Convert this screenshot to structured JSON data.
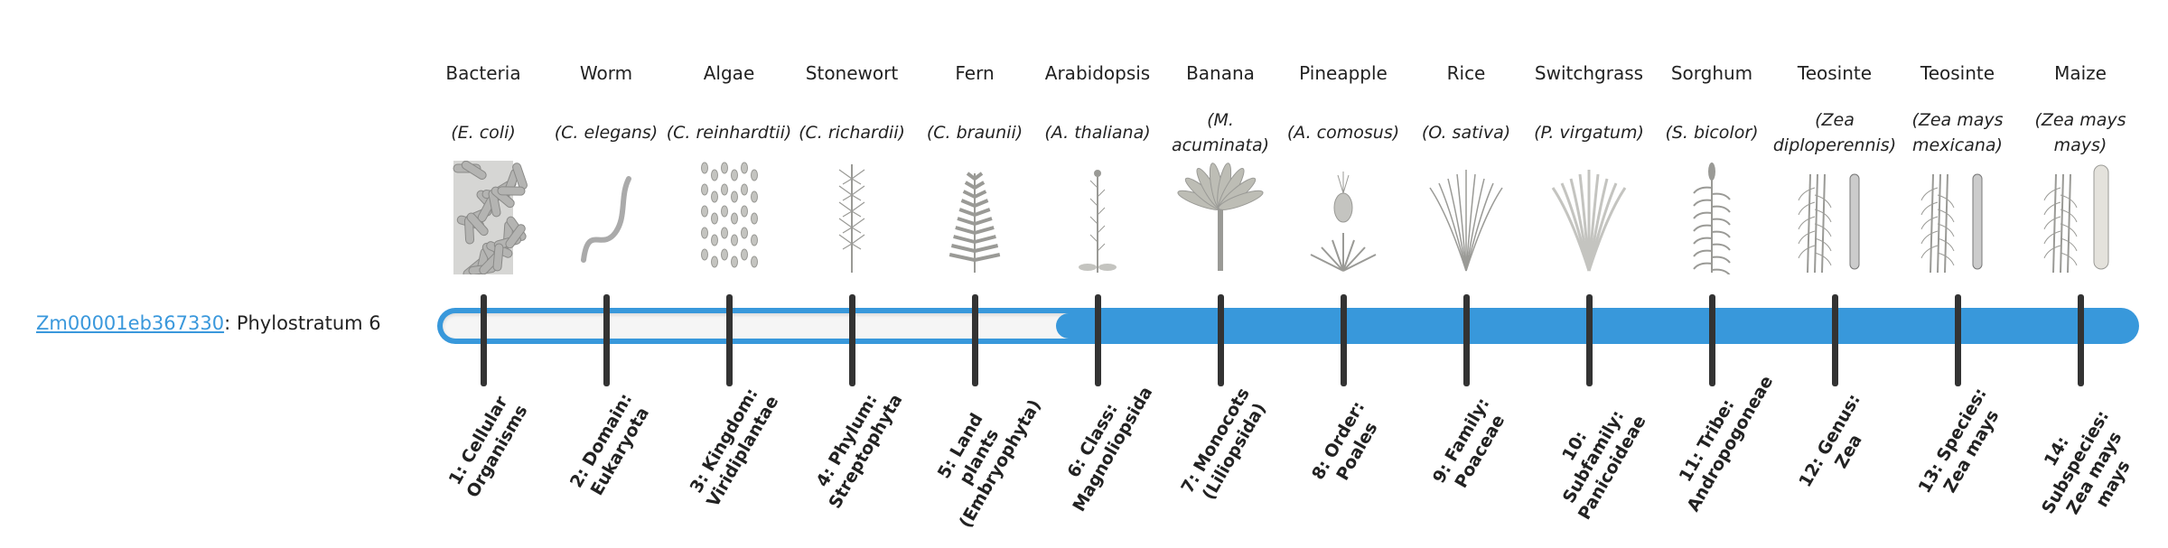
{
  "gene": {
    "id": "Zm00001eb367330",
    "separator": ": ",
    "label": "Phylostratum 6"
  },
  "progress": {
    "current_stratum": 6,
    "total_strata": 14,
    "filled_from_stratum": 6,
    "fill_color": "#3898db",
    "empty_color": "#f5f5f5"
  },
  "organisms": [
    {
      "common": "Bacteria",
      "scientific": "(E. coli)",
      "icon": "bacteria",
      "rank": "1: Cellular Organisms"
    },
    {
      "common": "Worm",
      "scientific": "(C. elegans)",
      "icon": "worm",
      "rank": "2: Domain: Eukaryota"
    },
    {
      "common": "Algae",
      "scientific": "(C. reinhardtii)",
      "icon": "algae",
      "rank": "3: Kingdom: Viridiplantae"
    },
    {
      "common": "Stonewort",
      "scientific": "(C. richardii)",
      "icon": "stonewort",
      "rank": "4: Phylum: Streptophyta"
    },
    {
      "common": "Fern",
      "scientific": "(C. braunii)",
      "icon": "fern",
      "rank": "5: Land plants (Embryophyta)"
    },
    {
      "common": "Arabidopsis",
      "scientific": "(A. thaliana)",
      "icon": "arabidopsis",
      "rank": "6: Class: Magnoliopsida"
    },
    {
      "common": "Banana",
      "scientific": "(M. acuminata)",
      "icon": "banana",
      "rank": "7: Monocots (Liliopsida)"
    },
    {
      "common": "Pineapple",
      "scientific": "(A. comosus)",
      "icon": "pineapple",
      "rank": "8: Order: Poales"
    },
    {
      "common": "Rice",
      "scientific": "(O. sativa)",
      "icon": "rice",
      "rank": "9: Family: Poaceae"
    },
    {
      "common": "Switchgrass",
      "scientific": "(P. virgatum)",
      "icon": "switchgrass",
      "rank": "10: Subfamily: Panicoideae"
    },
    {
      "common": "Sorghum",
      "scientific": "(S. bicolor)",
      "icon": "sorghum",
      "rank": "11: Tribe: Andropogoneae"
    },
    {
      "common": "Teosinte",
      "scientific": "(Zea diploperennis)",
      "icon": "teosinte",
      "rank": "12: Genus: Zea"
    },
    {
      "common": "Teosinte",
      "scientific": "(Zea mays mexicana)",
      "icon": "teosinte",
      "rank": "13: Species: Zea mays"
    },
    {
      "common": "Maize",
      "scientific": "(Zea mays mays)",
      "icon": "maize",
      "rank": "14: Subspecies: Zea mays mays"
    }
  ]
}
